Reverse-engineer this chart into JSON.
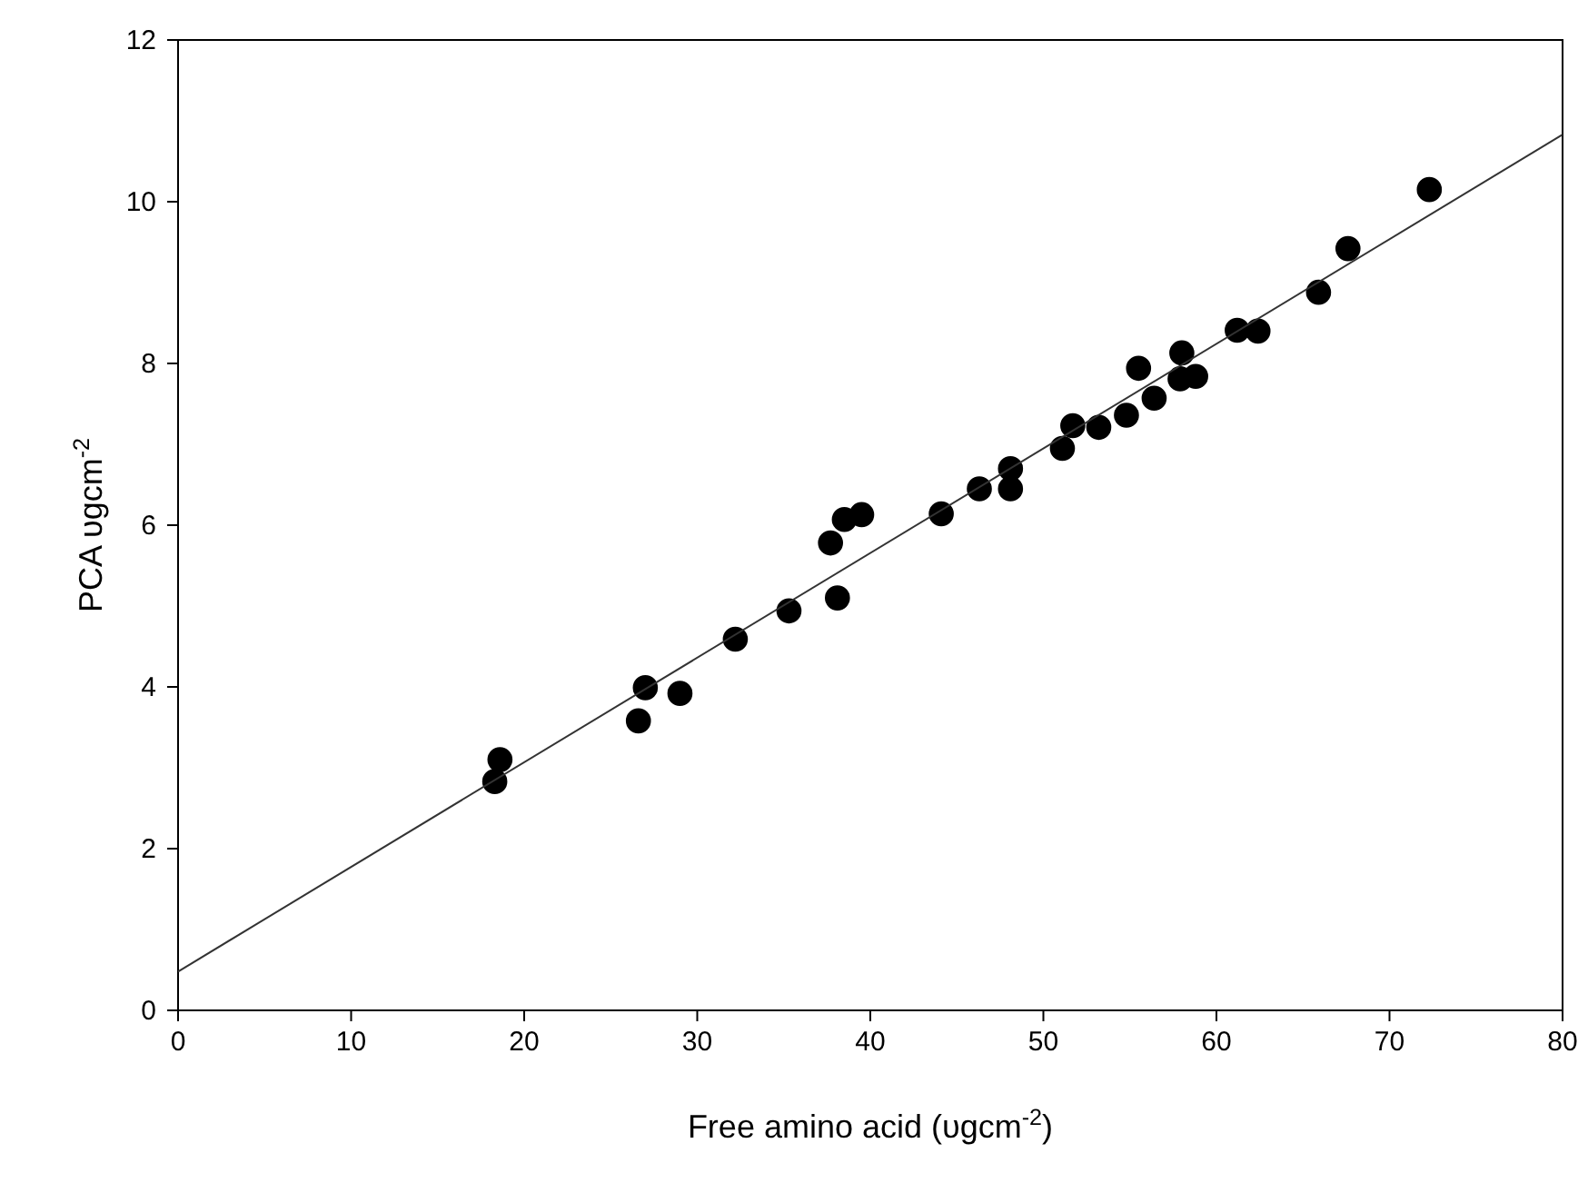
{
  "chart_data": {
    "type": "scatter",
    "xlabel": "Free amino acid (υgcm$^{-2}$)",
    "ylabel": "PCA υgcm$^{-2}$",
    "xlim": [
      0,
      80
    ],
    "ylim": [
      0,
      12
    ],
    "xticks": [
      0,
      10,
      20,
      30,
      40,
      50,
      60,
      70,
      80
    ],
    "yticks": [
      0,
      2,
      4,
      6,
      8,
      10,
      12
    ],
    "grid": false,
    "marker": "circle",
    "series": [
      {
        "color": "#000000",
        "x": [
          18.6,
          18.3,
          26.6,
          27.0,
          29.0,
          32.2,
          35.3,
          38.1,
          37.7,
          38.5,
          39.5,
          44.1,
          46.3,
          48.1,
          48.1,
          51.1,
          51.7,
          53.2,
          54.8,
          55.5,
          56.4,
          58.0,
          57.9,
          58.8,
          61.2,
          62.4,
          65.9,
          67.6,
          72.3
        ],
        "values": [
          3.1,
          2.83,
          3.58,
          3.99,
          3.92,
          4.59,
          4.94,
          5.1,
          5.78,
          6.07,
          6.13,
          6.14,
          6.45,
          6.7,
          6.45,
          6.95,
          7.23,
          7.21,
          7.36,
          7.94,
          7.57,
          8.13,
          7.81,
          7.84,
          8.41,
          8.4,
          8.88,
          9.42,
          10.15
        ]
      },
      {
        "type": "line",
        "color": "#333333",
        "line_style": "solid",
        "marker": "none",
        "x": [
          0,
          80
        ],
        "values": [
          0.48,
          10.83
        ]
      }
    ]
  }
}
